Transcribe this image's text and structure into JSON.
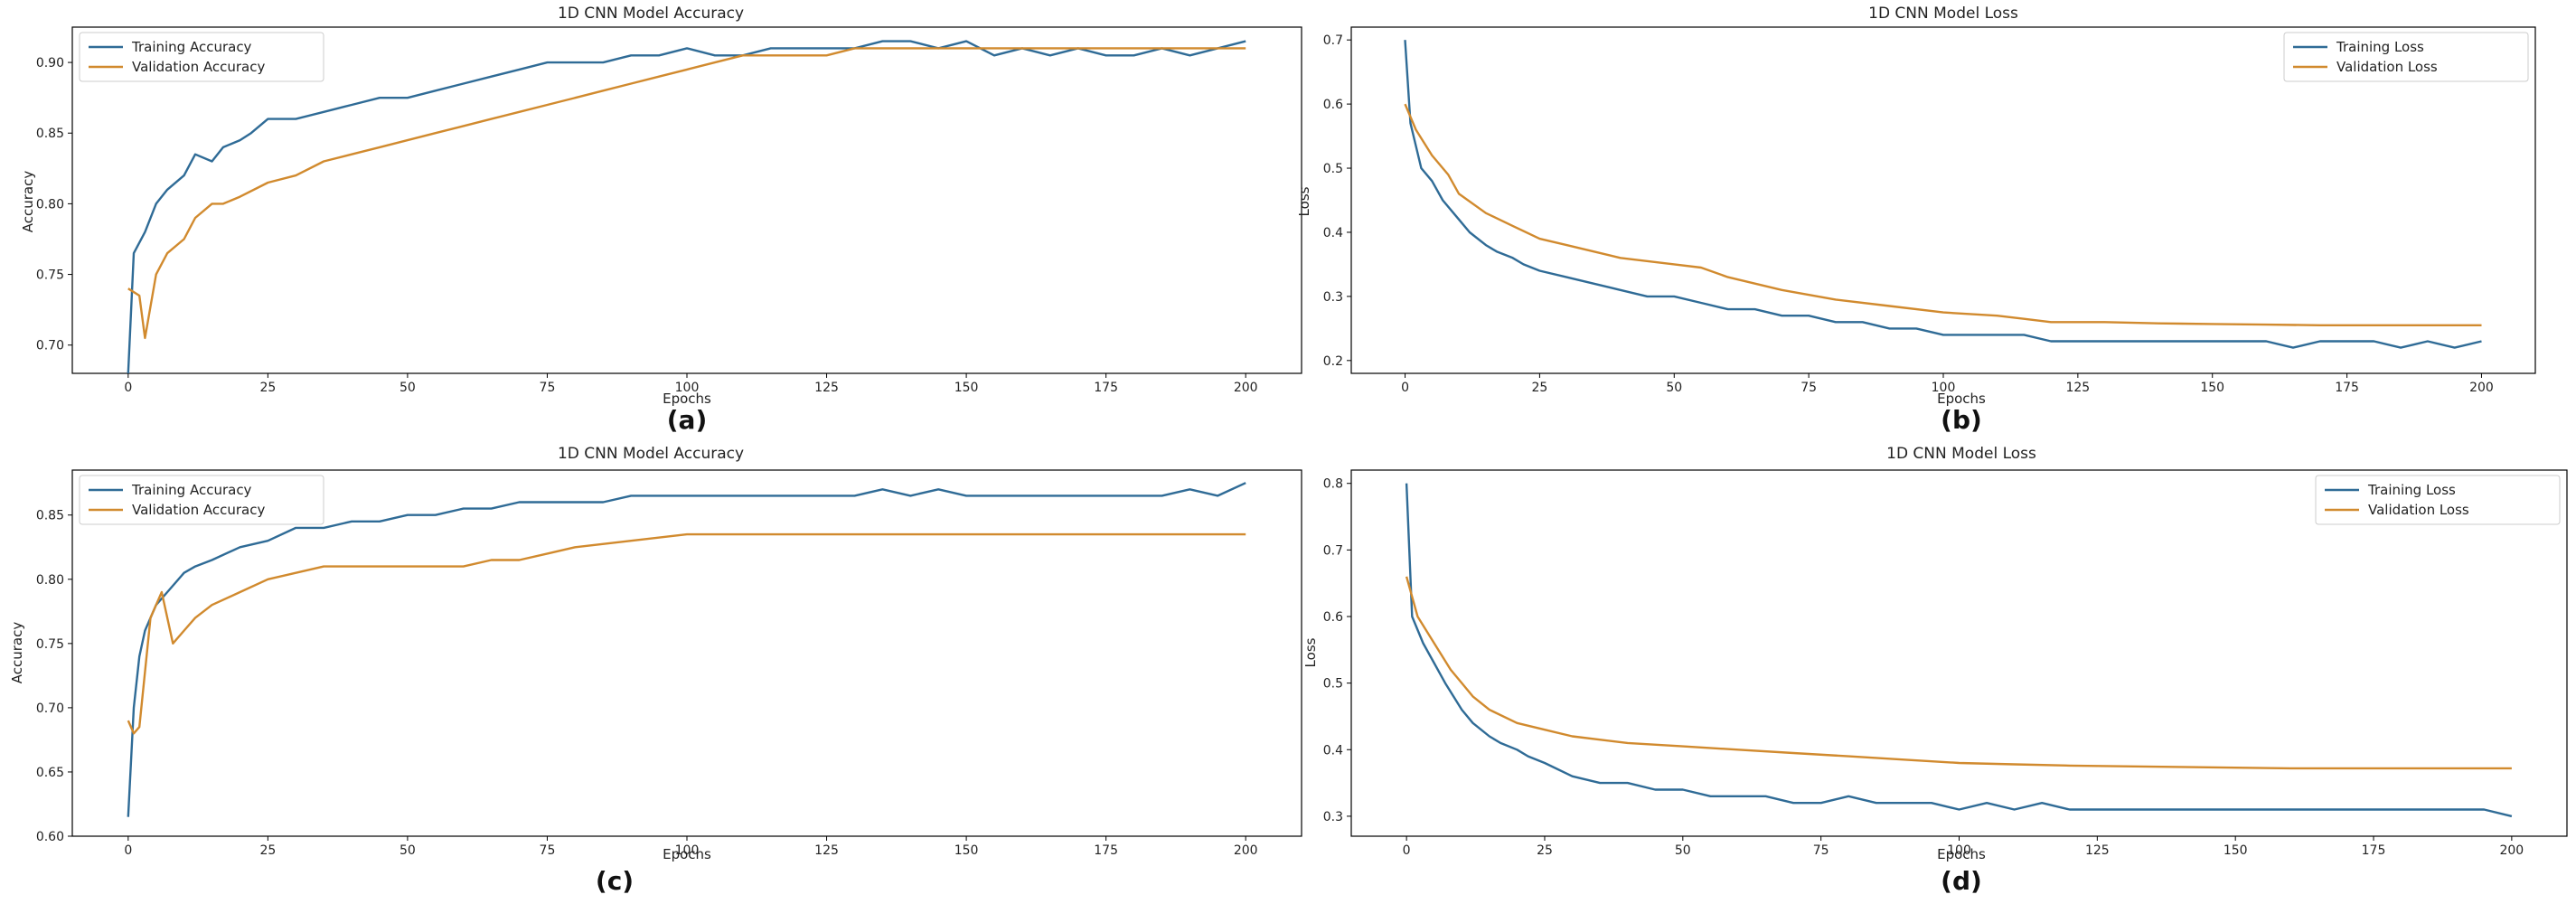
{
  "figure": {
    "panels": [
      {
        "caption": "(a)"
      },
      {
        "caption": "(b)"
      },
      {
        "caption": "(c)"
      },
      {
        "caption": "(d)"
      }
    ]
  },
  "chart_data": [
    {
      "type": "line",
      "title": "1D CNN Model Accuracy",
      "xlabel": "Epochs",
      "ylabel": "Accuracy",
      "xlim": [
        -10,
        210
      ],
      "ylim": [
        0.68,
        0.925
      ],
      "xticks": [
        0,
        25,
        50,
        75,
        100,
        125,
        150,
        175,
        200
      ],
      "yticks": [
        0.7,
        0.75,
        0.8,
        0.85,
        0.9
      ],
      "ytick_format": 2,
      "legend_position": "top-left",
      "series": [
        {
          "name": "Training Accuracy",
          "color": "#2f6b96",
          "x": [
            0,
            1,
            3,
            5,
            7,
            10,
            12,
            15,
            17,
            20,
            22,
            25,
            30,
            35,
            40,
            45,
            50,
            55,
            60,
            65,
            70,
            75,
            80,
            85,
            90,
            95,
            100,
            105,
            110,
            115,
            120,
            125,
            130,
            135,
            140,
            145,
            150,
            155,
            160,
            165,
            170,
            175,
            180,
            185,
            190,
            195,
            200
          ],
          "y": [
            0.68,
            0.765,
            0.78,
            0.8,
            0.81,
            0.82,
            0.835,
            0.83,
            0.84,
            0.845,
            0.85,
            0.86,
            0.86,
            0.865,
            0.87,
            0.875,
            0.875,
            0.88,
            0.885,
            0.89,
            0.895,
            0.9,
            0.9,
            0.9,
            0.905,
            0.905,
            0.91,
            0.905,
            0.905,
            0.91,
            0.91,
            0.91,
            0.91,
            0.915,
            0.915,
            0.91,
            0.915,
            0.905,
            0.91,
            0.905,
            0.91,
            0.905,
            0.905,
            0.91,
            0.905,
            0.91,
            0.915
          ]
        },
        {
          "name": "Validation Accuracy",
          "color": "#d18a2e",
          "x": [
            0,
            2,
            3,
            5,
            7,
            10,
            12,
            15,
            17,
            20,
            25,
            30,
            35,
            40,
            45,
            50,
            55,
            60,
            65,
            70,
            75,
            80,
            85,
            90,
            95,
            100,
            105,
            110,
            115,
            120,
            125,
            130,
            135,
            140,
            145,
            150,
            155,
            160,
            165,
            170,
            175,
            180,
            185,
            190,
            195,
            200
          ],
          "y": [
            0.74,
            0.735,
            0.705,
            0.75,
            0.765,
            0.775,
            0.79,
            0.8,
            0.8,
            0.805,
            0.815,
            0.82,
            0.83,
            0.835,
            0.84,
            0.845,
            0.85,
            0.855,
            0.86,
            0.865,
            0.87,
            0.875,
            0.88,
            0.885,
            0.89,
            0.895,
            0.9,
            0.905,
            0.905,
            0.905,
            0.905,
            0.91,
            0.91,
            0.91,
            0.91,
            0.91,
            0.91,
            0.91,
            0.91,
            0.91,
            0.91,
            0.91,
            0.91,
            0.91,
            0.91,
            0.91
          ]
        }
      ]
    },
    {
      "type": "line",
      "title": "1D CNN Model Loss",
      "xlabel": "Epochs",
      "ylabel": "Loss",
      "xlim": [
        -10,
        210
      ],
      "ylim": [
        0.18,
        0.72
      ],
      "xticks": [
        0,
        25,
        50,
        75,
        100,
        125,
        150,
        175,
        200
      ],
      "yticks": [
        0.2,
        0.3,
        0.4,
        0.5,
        0.6,
        0.7
      ],
      "ytick_format": 1,
      "legend_position": "top-right",
      "series": [
        {
          "name": "Training Loss",
          "color": "#2f6b96",
          "x": [
            0,
            1,
            3,
            5,
            7,
            10,
            12,
            15,
            17,
            20,
            22,
            25,
            30,
            35,
            40,
            45,
            50,
            55,
            60,
            65,
            70,
            75,
            80,
            85,
            90,
            95,
            100,
            105,
            110,
            115,
            120,
            125,
            130,
            135,
            140,
            145,
            150,
            155,
            160,
            165,
            170,
            175,
            180,
            185,
            190,
            195,
            200
          ],
          "y": [
            0.7,
            0.57,
            0.5,
            0.48,
            0.45,
            0.42,
            0.4,
            0.38,
            0.37,
            0.36,
            0.35,
            0.34,
            0.33,
            0.32,
            0.31,
            0.3,
            0.3,
            0.29,
            0.28,
            0.28,
            0.27,
            0.27,
            0.26,
            0.26,
            0.25,
            0.25,
            0.24,
            0.24,
            0.24,
            0.24,
            0.23,
            0.23,
            0.23,
            0.23,
            0.23,
            0.23,
            0.23,
            0.23,
            0.23,
            0.22,
            0.23,
            0.23,
            0.23,
            0.22,
            0.23,
            0.22,
            0.23
          ]
        },
        {
          "name": "Validation Loss",
          "color": "#d18a2e",
          "x": [
            0,
            2,
            5,
            8,
            10,
            15,
            20,
            25,
            30,
            40,
            50,
            55,
            60,
            70,
            80,
            90,
            100,
            110,
            115,
            120,
            130,
            140,
            150,
            160,
            170,
            180,
            190,
            200
          ],
          "y": [
            0.6,
            0.56,
            0.52,
            0.49,
            0.46,
            0.43,
            0.41,
            0.39,
            0.38,
            0.36,
            0.35,
            0.345,
            0.33,
            0.31,
            0.295,
            0.285,
            0.275,
            0.27,
            0.265,
            0.26,
            0.26,
            0.258,
            0.257,
            0.256,
            0.255,
            0.255,
            0.255,
            0.255
          ]
        }
      ]
    },
    {
      "type": "line",
      "title": "1D CNN Model Accuracy",
      "xlabel": "Epochs",
      "ylabel": "Accuracy",
      "xlim": [
        -10,
        210
      ],
      "ylim": [
        0.6,
        0.885
      ],
      "xticks": [
        0,
        25,
        50,
        75,
        100,
        125,
        150,
        175,
        200
      ],
      "yticks": [
        0.6,
        0.65,
        0.7,
        0.75,
        0.8,
        0.85
      ],
      "ytick_format": 2,
      "legend_position": "top-left",
      "series": [
        {
          "name": "Training Accuracy",
          "color": "#2f6b96",
          "x": [
            0,
            1,
            2,
            3,
            5,
            7,
            10,
            12,
            15,
            20,
            25,
            30,
            35,
            40,
            45,
            50,
            55,
            60,
            65,
            70,
            75,
            80,
            85,
            90,
            95,
            100,
            105,
            110,
            115,
            120,
            125,
            130,
            135,
            140,
            145,
            150,
            155,
            160,
            165,
            170,
            175,
            180,
            185,
            190,
            195,
            200
          ],
          "y": [
            0.615,
            0.7,
            0.74,
            0.76,
            0.78,
            0.79,
            0.805,
            0.81,
            0.815,
            0.825,
            0.83,
            0.84,
            0.84,
            0.845,
            0.845,
            0.85,
            0.85,
            0.855,
            0.855,
            0.86,
            0.86,
            0.86,
            0.86,
            0.865,
            0.865,
            0.865,
            0.865,
            0.865,
            0.865,
            0.865,
            0.865,
            0.865,
            0.87,
            0.865,
            0.87,
            0.865,
            0.865,
            0.865,
            0.865,
            0.865,
            0.865,
            0.865,
            0.865,
            0.87,
            0.865,
            0.875
          ]
        },
        {
          "name": "Validation Accuracy",
          "color": "#d18a2e",
          "x": [
            0,
            1,
            2,
            4,
            6,
            8,
            10,
            12,
            15,
            20,
            25,
            30,
            35,
            40,
            45,
            50,
            55,
            60,
            65,
            70,
            75,
            80,
            90,
            100,
            110,
            120,
            130,
            140,
            150,
            160,
            170,
            180,
            190,
            200
          ],
          "y": [
            0.69,
            0.68,
            0.685,
            0.77,
            0.79,
            0.75,
            0.76,
            0.77,
            0.78,
            0.79,
            0.8,
            0.805,
            0.81,
            0.81,
            0.81,
            0.81,
            0.81,
            0.81,
            0.815,
            0.815,
            0.82,
            0.825,
            0.83,
            0.835,
            0.835,
            0.835,
            0.835,
            0.835,
            0.835,
            0.835,
            0.835,
            0.835,
            0.835,
            0.835
          ]
        }
      ]
    },
    {
      "type": "line",
      "title": "1D CNN Model Loss",
      "xlabel": "Epochs",
      "ylabel": "Loss",
      "xlim": [
        -10,
        210
      ],
      "ylim": [
        0.27,
        0.82
      ],
      "xticks": [
        0,
        25,
        50,
        75,
        100,
        125,
        150,
        175,
        200
      ],
      "yticks": [
        0.3,
        0.4,
        0.5,
        0.6,
        0.7,
        0.8
      ],
      "ytick_format": 1,
      "legend_position": "top-right",
      "series": [
        {
          "name": "Training Loss",
          "color": "#2f6b96",
          "x": [
            0,
            1,
            3,
            5,
            7,
            10,
            12,
            15,
            17,
            20,
            22,
            25,
            30,
            35,
            40,
            45,
            50,
            55,
            60,
            65,
            70,
            75,
            80,
            85,
            90,
            95,
            100,
            105,
            110,
            115,
            120,
            125,
            130,
            135,
            140,
            145,
            150,
            155,
            160,
            165,
            170,
            175,
            180,
            185,
            190,
            195,
            200
          ],
          "y": [
            0.8,
            0.6,
            0.56,
            0.53,
            0.5,
            0.46,
            0.44,
            0.42,
            0.41,
            0.4,
            0.39,
            0.38,
            0.36,
            0.35,
            0.35,
            0.34,
            0.34,
            0.33,
            0.33,
            0.33,
            0.32,
            0.32,
            0.33,
            0.32,
            0.32,
            0.32,
            0.31,
            0.32,
            0.31,
            0.32,
            0.31,
            0.31,
            0.31,
            0.31,
            0.31,
            0.31,
            0.31,
            0.31,
            0.31,
            0.31,
            0.31,
            0.31,
            0.31,
            0.31,
            0.31,
            0.31,
            0.3
          ]
        },
        {
          "name": "Validation Loss",
          "color": "#d18a2e",
          "x": [
            0,
            2,
            5,
            8,
            10,
            12,
            15,
            20,
            25,
            30,
            40,
            50,
            60,
            70,
            80,
            90,
            100,
            110,
            120,
            130,
            140,
            150,
            160,
            170,
            180,
            190,
            200
          ],
          "y": [
            0.66,
            0.6,
            0.56,
            0.52,
            0.5,
            0.48,
            0.46,
            0.44,
            0.43,
            0.42,
            0.41,
            0.405,
            0.4,
            0.395,
            0.39,
            0.385,
            0.38,
            0.378,
            0.376,
            0.375,
            0.374,
            0.373,
            0.372,
            0.372,
            0.372,
            0.372,
            0.372
          ]
        }
      ]
    }
  ]
}
